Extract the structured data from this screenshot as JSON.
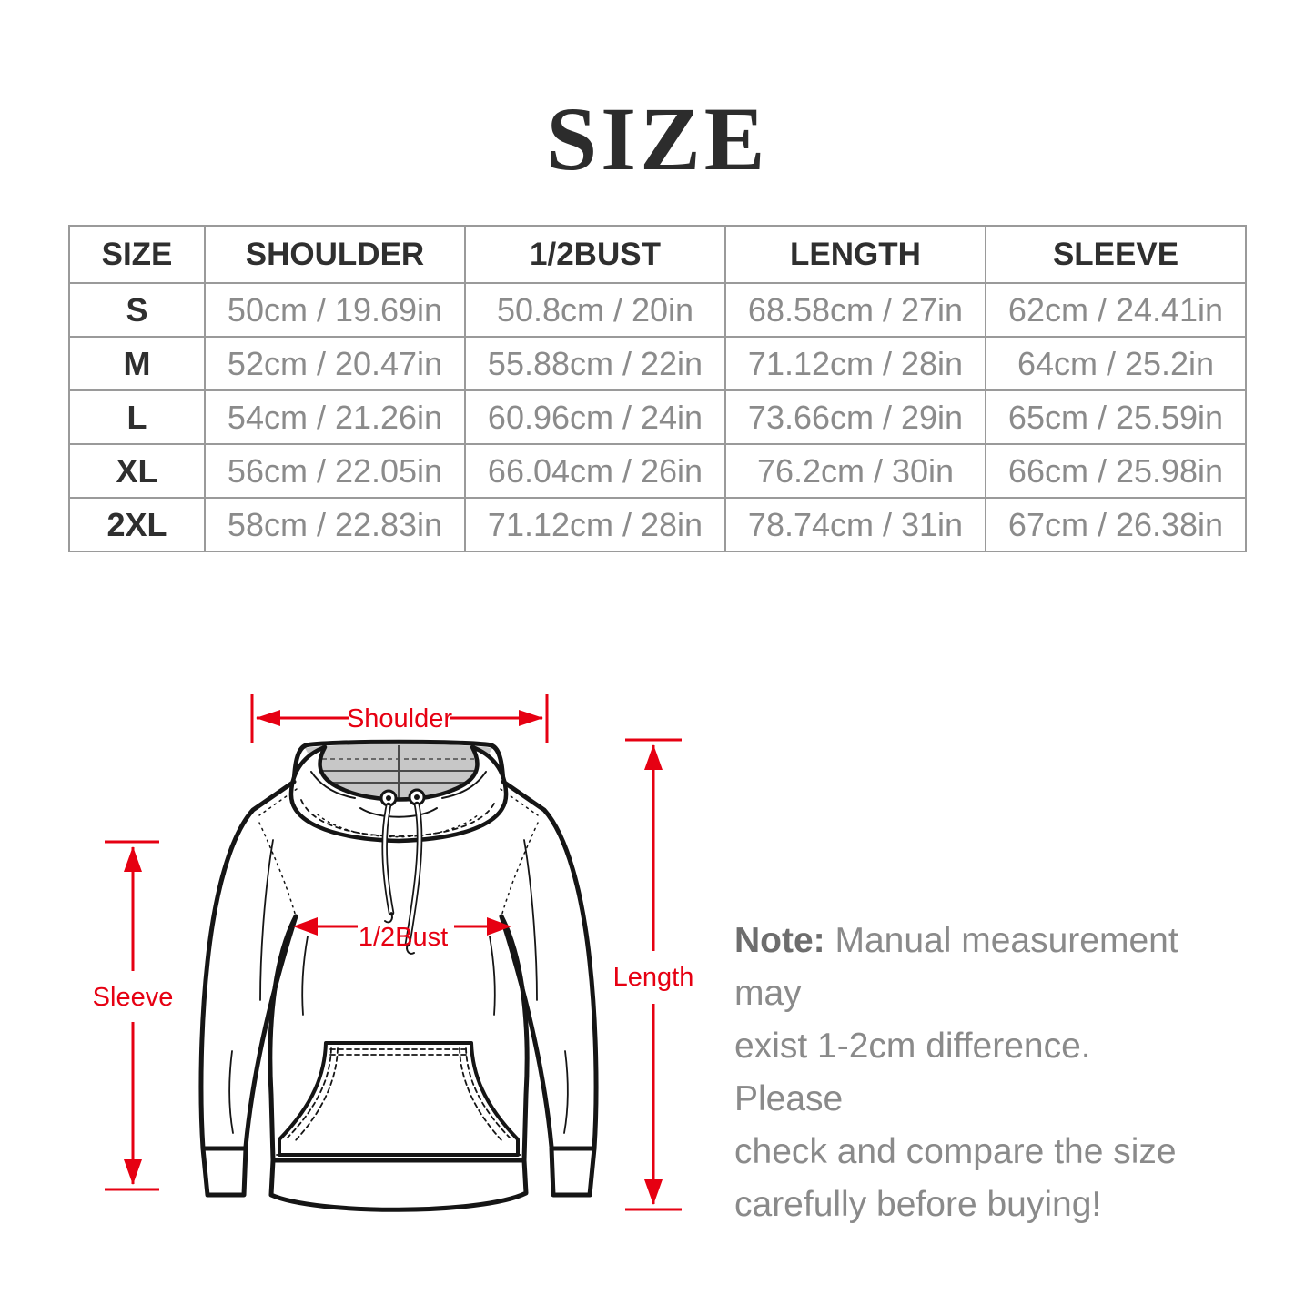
{
  "page": {
    "title": "SIZE"
  },
  "table": {
    "columns": [
      "SIZE",
      "SHOULDER",
      "1/2BUST",
      "LENGTH",
      "SLEEVE"
    ],
    "rows": [
      [
        "S",
        "50cm / 19.69in",
        "50.8cm / 20in",
        "68.58cm / 27in",
        "62cm / 24.41in"
      ],
      [
        "M",
        "52cm / 20.47in",
        "55.88cm / 22in",
        "71.12cm / 28in",
        "64cm / 25.2in"
      ],
      [
        "L",
        "54cm / 21.26in",
        "60.96cm / 24in",
        "73.66cm / 29in",
        "65cm / 25.59in"
      ],
      [
        "XL",
        "56cm / 22.05in",
        "66.04cm / 26in",
        "76.2cm / 30in",
        "66cm / 25.98in"
      ],
      [
        "2XL",
        "58cm / 22.83in",
        "71.12cm / 28in",
        "78.74cm / 31in",
        "67cm / 26.38in"
      ]
    ]
  },
  "diagram": {
    "labels": {
      "shoulder": "Shoulder",
      "half_bust": "1/2Bust",
      "sleeve": "Sleeve",
      "length": "Length"
    },
    "arrow_color": "#e60012"
  },
  "note": {
    "label": "Note:",
    "lines": [
      "Manual measurement may",
      "exist 1-2cm difference. Please",
      "check and compare the size",
      "carefully before buying!"
    ]
  }
}
